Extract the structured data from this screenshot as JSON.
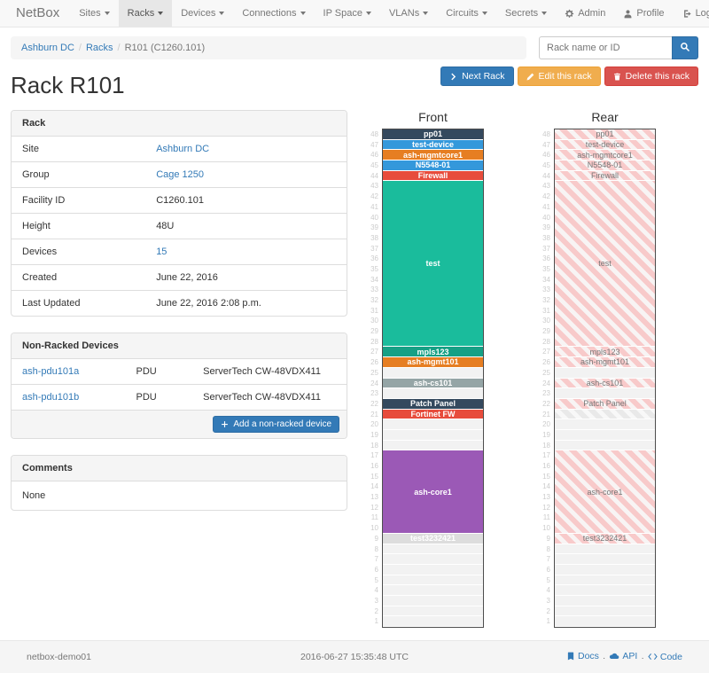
{
  "colors": {
    "primary": "#337ab7",
    "warning": "#f0ad4e",
    "danger": "#d9534f",
    "navbar_bg": "#f8f8f8",
    "panel_header_bg": "#f5f5f5",
    "empty_unit": "#f2f2f2"
  },
  "navbar": {
    "brand": "NetBox",
    "items": [
      {
        "label": "Sites",
        "active": false
      },
      {
        "label": "Racks",
        "active": true
      },
      {
        "label": "Devices",
        "active": false
      },
      {
        "label": "Connections",
        "active": false
      },
      {
        "label": "IP Space",
        "active": false
      },
      {
        "label": "VLANs",
        "active": false
      },
      {
        "label": "Circuits",
        "active": false
      },
      {
        "label": "Secrets",
        "active": false
      }
    ],
    "right_items": [
      {
        "label": "Admin",
        "icon": "gear-icon"
      },
      {
        "label": "Profile",
        "icon": "user-icon"
      },
      {
        "label": "Log out",
        "icon": "logout-icon"
      }
    ]
  },
  "breadcrumb": [
    {
      "label": "Ashburn DC",
      "link": true
    },
    {
      "label": "Racks",
      "link": true
    },
    {
      "label": "R101 (C1260.101)",
      "link": false
    }
  ],
  "search": {
    "placeholder": "Rack name or ID",
    "icon": "search-icon"
  },
  "page": {
    "title": "Rack R101"
  },
  "actions": [
    {
      "label": "Next Rack",
      "icon": "chevron-right-icon",
      "style": "primary",
      "name": "next-rack-button"
    },
    {
      "label": "Edit this rack",
      "icon": "pencil-icon",
      "style": "warning",
      "name": "edit-rack-button"
    },
    {
      "label": "Delete this rack",
      "icon": "trash-icon",
      "style": "danger",
      "name": "delete-rack-button"
    }
  ],
  "rack_panel": {
    "title": "Rack",
    "rows": [
      {
        "label": "Site",
        "value": "Ashburn DC",
        "is_link": true
      },
      {
        "label": "Group",
        "value": "Cage 1250",
        "is_link": true
      },
      {
        "label": "Facility ID",
        "value": "C1260.101",
        "is_link": false
      },
      {
        "label": "Height",
        "value": "48U",
        "is_link": false
      },
      {
        "label": "Devices",
        "value": "15",
        "is_link": true
      },
      {
        "label": "Created",
        "value": "June 22, 2016",
        "is_link": false
      },
      {
        "label": "Last Updated",
        "value": "June 22, 2016 2:08 p.m.",
        "is_link": false
      }
    ]
  },
  "nonracked_panel": {
    "title": "Non-Racked Devices",
    "rows": [
      {
        "name": "ash-pdu101a",
        "role": "PDU",
        "model": "ServerTech CW-48VDX411"
      },
      {
        "name": "ash-pdu101b",
        "role": "PDU",
        "model": "ServerTech CW-48VDX411"
      }
    ],
    "add_button": "Add a non-racked device"
  },
  "comments_panel": {
    "title": "Comments",
    "body": "None"
  },
  "rack": {
    "total_units": 48,
    "front": {
      "title": "Front",
      "slots": [
        {
          "u": 1,
          "label": "pp01",
          "color": "#34495e"
        },
        {
          "u": 1,
          "label": "test-device",
          "color": "#3498db"
        },
        {
          "u": 1,
          "label": "ash-mgmtcore1",
          "color": "#e67e22"
        },
        {
          "u": 1,
          "label": "N5548-01",
          "color": "#3498db"
        },
        {
          "u": 1,
          "label": "Firewall",
          "color": "#e74c3c"
        },
        {
          "u": 16,
          "label": "test",
          "color": "#1abc9c"
        },
        {
          "u": 1,
          "label": "mpls123",
          "color": "#16a085"
        },
        {
          "u": 1,
          "label": "ash-mgmt101",
          "color": "#e67e22"
        },
        {
          "u": 1,
          "empty": true
        },
        {
          "u": 1,
          "label": "ash-cs101",
          "color": "#95a5a6"
        },
        {
          "u": 1,
          "empty": true
        },
        {
          "u": 1,
          "label": "Patch Panel",
          "color": "#34495e"
        },
        {
          "u": 1,
          "label": "Fortinet FW",
          "color": "#e74c3c"
        },
        {
          "u": 3,
          "empty": true
        },
        {
          "u": 8,
          "label": "ash-core1",
          "color": "#9b59b6"
        },
        {
          "u": 1,
          "label": "test3232421",
          "color": "#dddddd"
        },
        {
          "u": 8,
          "empty": true
        }
      ]
    },
    "rear": {
      "title": "Rear",
      "slots": [
        {
          "u": 1,
          "label": "pp01",
          "pattern": "pink"
        },
        {
          "u": 1,
          "label": "test-device",
          "pattern": "pink"
        },
        {
          "u": 1,
          "label": "ash-mgmtcore1",
          "pattern": "pink"
        },
        {
          "u": 1,
          "label": "N5548-01",
          "pattern": "pink"
        },
        {
          "u": 1,
          "label": "Firewall",
          "pattern": "pink"
        },
        {
          "u": 16,
          "label": "test",
          "pattern": "pink"
        },
        {
          "u": 1,
          "label": "mpls123",
          "pattern": "pink"
        },
        {
          "u": 1,
          "label": "ash-mgmt101",
          "pattern": "pink"
        },
        {
          "u": 1,
          "empty": true
        },
        {
          "u": 1,
          "label": "ash-cs101",
          "pattern": "pink"
        },
        {
          "u": 1,
          "empty": true
        },
        {
          "u": 1,
          "label": "Patch Panel",
          "pattern": "pink"
        },
        {
          "u": 1,
          "label": "",
          "pattern": "gray"
        },
        {
          "u": 3,
          "empty": true
        },
        {
          "u": 8,
          "label": "ash-core1",
          "pattern": "pink"
        },
        {
          "u": 1,
          "label": "test3232421",
          "pattern": "pink"
        },
        {
          "u": 8,
          "empty": true
        }
      ]
    }
  },
  "footer": {
    "hostname": "netbox-demo01",
    "timestamp": "2016-06-27 15:35:48 UTC",
    "links": [
      {
        "label": "Docs",
        "icon": "book-icon"
      },
      {
        "label": "API",
        "icon": "cloud-icon"
      },
      {
        "label": "Code",
        "icon": "code-icon"
      }
    ]
  }
}
